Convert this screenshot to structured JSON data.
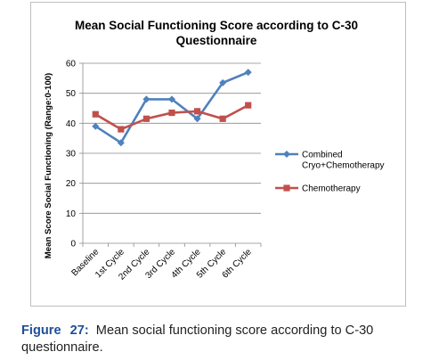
{
  "chart_data": {
    "type": "line",
    "title_lines": [
      "Mean Social Functioning Score according to C-30",
      "Questionnaire"
    ],
    "ylabel": "Mean Score Social Functioning (Range:0-100)",
    "xlabel": "",
    "categories": [
      "Baseline",
      "1st Cycle",
      "2nd Cycle",
      "3rd Cycle",
      "4th Cycle",
      "5th Cycle",
      "6th Cycle"
    ],
    "ylim": [
      0,
      60
    ],
    "yticks": [
      "0",
      "10",
      "20",
      "30",
      "40",
      "50",
      "60"
    ],
    "grid": "horizontal",
    "legend_position": "right",
    "series": [
      {
        "name_lines": [
          "Combined",
          "Cryo+Chemotherapy"
        ],
        "values": [
          39,
          33.5,
          48,
          48,
          41.5,
          53.5,
          57
        ],
        "color": "#4f81bd",
        "marker": "diamond"
      },
      {
        "name_lines": [
          "Chemotherapy"
        ],
        "values": [
          43,
          38,
          41.5,
          43.5,
          44,
          41.5,
          46
        ],
        "color": "#c0504d",
        "marker": "square"
      }
    ]
  },
  "caption": {
    "label": "Figure",
    "number": "27:",
    "text": "Mean social functioning score according to C-30 questionnaire."
  }
}
